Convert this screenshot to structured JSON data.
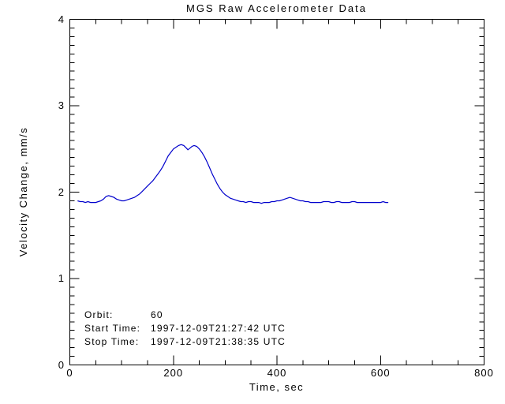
{
  "title": "MGS Raw Accelerometer Data",
  "colors": {
    "background": "#ffffff",
    "axis": "#000000",
    "text": "#000000",
    "line": "#0000cc"
  },
  "annotations": {
    "orbit_label": "Orbit:",
    "orbit_value": "60",
    "start_label": "Start Time:",
    "start_value": "1997-12-09T21:27:42 UTC",
    "stop_label": "Stop Time:",
    "stop_value": "1997-12-09T21:38:35 UTC"
  },
  "chart_data": {
    "type": "line",
    "title": "MGS Raw Accelerometer Data",
    "xlabel": "Time, sec",
    "ylabel": "Velocity Change, mm/s",
    "xlim": [
      0,
      800
    ],
    "ylim": [
      0,
      4
    ],
    "x_major_ticks": [
      0,
      200,
      400,
      600,
      800
    ],
    "x_minor_step": 50,
    "y_major_ticks": [
      0,
      1,
      2,
      3,
      4
    ],
    "y_minor_step": 0.1,
    "grid": false,
    "legend": "none",
    "line_color": "#0000cc",
    "series": [
      {
        "name": "velocity_change",
        "x": [
          15,
          20,
          25,
          30,
          35,
          40,
          45,
          50,
          55,
          60,
          65,
          70,
          75,
          80,
          85,
          90,
          95,
          100,
          105,
          110,
          115,
          120,
          125,
          130,
          135,
          140,
          145,
          150,
          155,
          160,
          165,
          170,
          175,
          180,
          185,
          190,
          195,
          200,
          205,
          210,
          215,
          220,
          225,
          228,
          232,
          236,
          240,
          245,
          250,
          255,
          260,
          265,
          270,
          275,
          280,
          285,
          290,
          295,
          300,
          305,
          310,
          315,
          320,
          325,
          330,
          335,
          340,
          345,
          350,
          355,
          360,
          365,
          370,
          375,
          380,
          385,
          390,
          395,
          400,
          405,
          410,
          415,
          420,
          425,
          430,
          435,
          440,
          445,
          450,
          455,
          460,
          465,
          470,
          475,
          480,
          485,
          490,
          495,
          500,
          505,
          510,
          515,
          520,
          525,
          530,
          535,
          540,
          545,
          550,
          555,
          560,
          565,
          570,
          575,
          580,
          585,
          590,
          595,
          600,
          605,
          610,
          615
        ],
        "y": [
          1.9,
          1.89,
          1.89,
          1.88,
          1.89,
          1.88,
          1.88,
          1.88,
          1.89,
          1.9,
          1.92,
          1.95,
          1.96,
          1.95,
          1.94,
          1.92,
          1.91,
          1.9,
          1.9,
          1.91,
          1.92,
          1.93,
          1.94,
          1.96,
          1.98,
          2.01,
          2.04,
          2.07,
          2.1,
          2.13,
          2.17,
          2.21,
          2.25,
          2.3,
          2.36,
          2.42,
          2.46,
          2.5,
          2.52,
          2.54,
          2.55,
          2.54,
          2.51,
          2.49,
          2.51,
          2.53,
          2.54,
          2.53,
          2.5,
          2.46,
          2.41,
          2.35,
          2.28,
          2.21,
          2.15,
          2.09,
          2.04,
          2.0,
          1.97,
          1.95,
          1.93,
          1.92,
          1.91,
          1.9,
          1.89,
          1.89,
          1.88,
          1.89,
          1.89,
          1.88,
          1.88,
          1.88,
          1.87,
          1.88,
          1.88,
          1.88,
          1.89,
          1.89,
          1.9,
          1.9,
          1.91,
          1.92,
          1.93,
          1.94,
          1.93,
          1.92,
          1.91,
          1.9,
          1.9,
          1.89,
          1.89,
          1.88,
          1.88,
          1.88,
          1.88,
          1.88,
          1.89,
          1.89,
          1.89,
          1.88,
          1.88,
          1.89,
          1.89,
          1.88,
          1.88,
          1.88,
          1.88,
          1.89,
          1.89,
          1.88,
          1.88,
          1.88,
          1.88,
          1.88,
          1.88,
          1.88,
          1.88,
          1.88,
          1.88,
          1.89,
          1.88,
          1.88
        ]
      }
    ]
  }
}
